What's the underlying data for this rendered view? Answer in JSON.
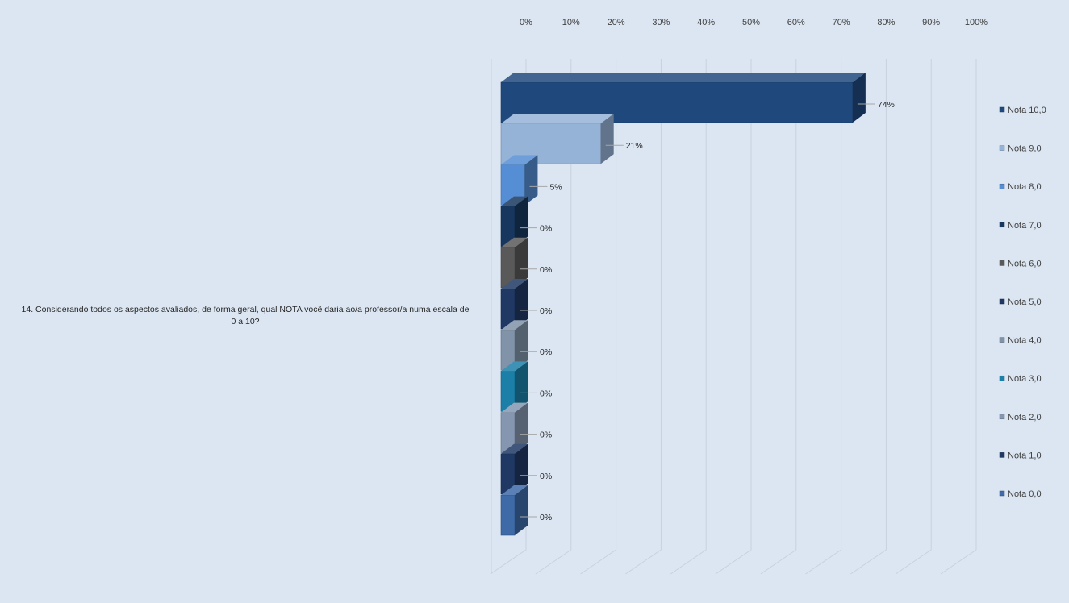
{
  "chart_data": {
    "type": "bar",
    "orientation": "horizontal",
    "style": "3d-clustered",
    "category": "14. Considerando todos os aspectos avaliados, de forma geral, qual NOTA você daria ao/a professor/a numa escala de 0 a 10?",
    "category_lines": [
      "14. Considerando todos os aspectos avaliados, de forma geral, qual NOTA você daria ao/a professor/a numa escala de",
      "0 a 10?"
    ],
    "xlim": [
      0,
      100
    ],
    "xticks": [
      "0%",
      "10%",
      "20%",
      "30%",
      "40%",
      "50%",
      "60%",
      "70%",
      "80%",
      "90%",
      "100%"
    ],
    "x_axis_position": "top",
    "grid": true,
    "legend_position": "right",
    "series": [
      {
        "name": "Nota 10,0",
        "value": 74,
        "label": "74%",
        "color": "#1f497d"
      },
      {
        "name": "Nota 9,0",
        "value": 21,
        "label": "21%",
        "color": "#95b3d7"
      },
      {
        "name": "Nota 8,0",
        "value": 5,
        "label": "5%",
        "color": "#558ed5"
      },
      {
        "name": "Nota 7,0",
        "value": 0,
        "label": "0%",
        "color": "#17375e"
      },
      {
        "name": "Nota 6,0",
        "value": 0,
        "label": "0%",
        "color": "#595959"
      },
      {
        "name": "Nota 5,0",
        "value": 0,
        "label": "0%",
        "color": "#1f3864"
      },
      {
        "name": "Nota 4,0",
        "value": 0,
        "label": "0%",
        "color": "#8093a8"
      },
      {
        "name": "Nota 3,0",
        "value": 0,
        "label": "0%",
        "color": "#1b7fa8"
      },
      {
        "name": "Nota 2,0",
        "value": 0,
        "label": "0%",
        "color": "#8496b0"
      },
      {
        "name": "Nota 1,0",
        "value": 0,
        "label": "0%",
        "color": "#1f3864"
      },
      {
        "name": "Nota 0,0",
        "value": 0,
        "label": "0%",
        "color": "#3e6aa8"
      }
    ]
  }
}
